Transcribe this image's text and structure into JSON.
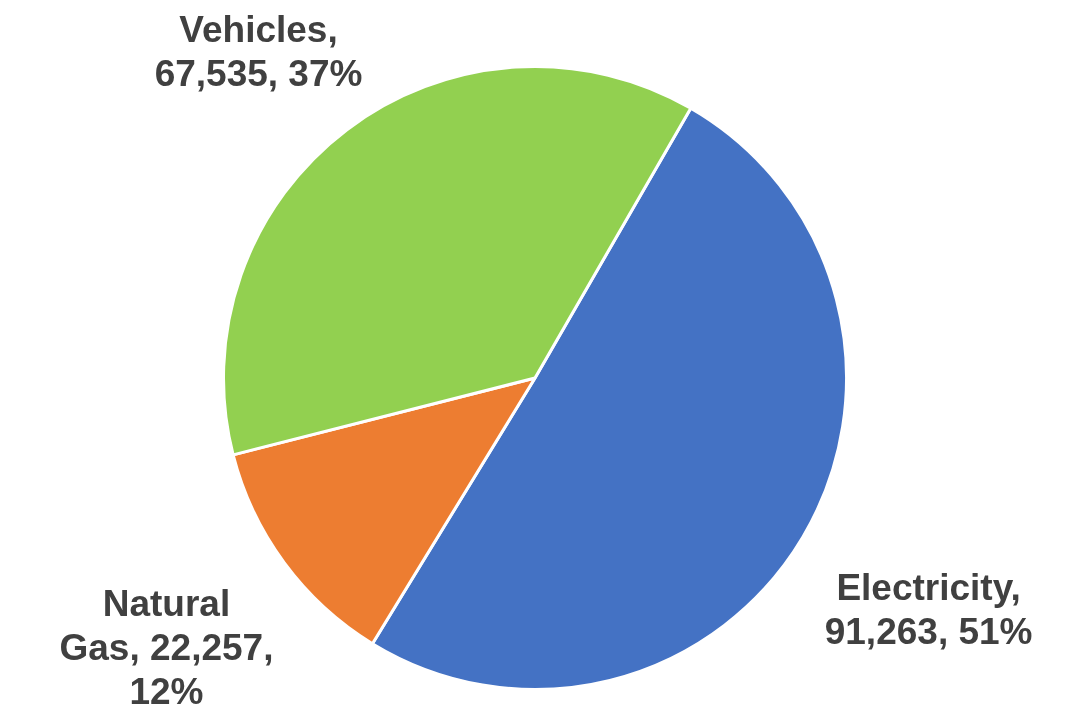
{
  "chart_data": {
    "type": "pie",
    "categories": [
      "Electricity",
      "Natural Gas",
      "Vehicles"
    ],
    "values": [
      91263,
      22257,
      67535
    ],
    "colors": [
      "#4472c4",
      "#ed7d31",
      "#92d050"
    ],
    "value_labels": [
      ", 91,263, 51%",
      ", 22,257, 12%",
      ", 67,535, 37%"
    ],
    "legend": false
  }
}
